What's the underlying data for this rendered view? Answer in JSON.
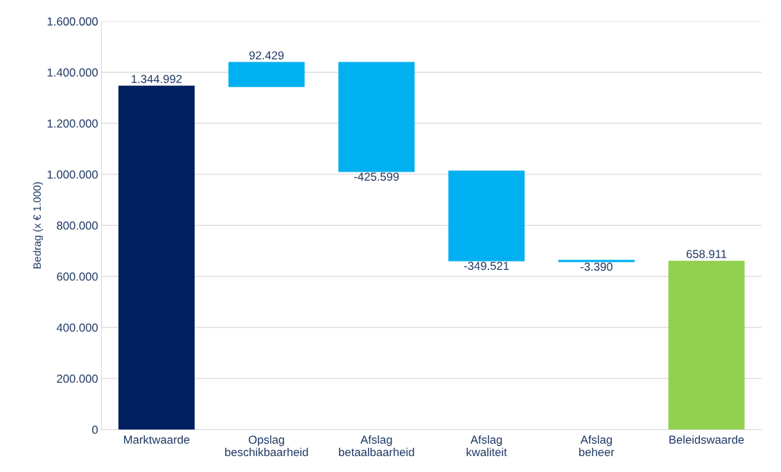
{
  "chart_data": {
    "type": "bar",
    "categories": [
      "Marktwaarde",
      "Opslag\nbeschikbaarheid",
      "Afslag\nbetaalbaarheid",
      "Afslag\nkwaliteit",
      "Afslag\nbeheer",
      "Beleidswaarde"
    ],
    "values": [
      1344992,
      92429,
      -425599,
      -349521,
      -3390,
      658911
    ],
    "base": [
      0,
      1344992,
      1437421,
      1011822,
      662301,
      0
    ],
    "colors": [
      "#002060",
      "#00b0f0",
      "#00b0f0",
      "#00b0f0",
      "#00b0f0",
      "#92d050"
    ],
    "value_labels": [
      "1.344.992",
      "92.429",
      "-425.599",
      "-349.521",
      "-3.390",
      "658.911"
    ],
    "ylabel": "Bedrag (x € 1.000)",
    "ylim": [
      0,
      1600000
    ],
    "yticks": [
      {
        "value": 0,
        "label": "0"
      },
      {
        "value": 200000,
        "label": "200.000"
      },
      {
        "value": 400000,
        "label": "400.000"
      },
      {
        "value": 600000,
        "label": "600.000"
      },
      {
        "value": 800000,
        "label": "800.000"
      },
      {
        "value": 1000000,
        "label": "1.000.000"
      },
      {
        "value": 1200000,
        "label": "1.200.000"
      },
      {
        "value": 1400000,
        "label": "1.400.000"
      },
      {
        "value": 1600000,
        "label": "1.600.000"
      }
    ],
    "grid": "y"
  }
}
